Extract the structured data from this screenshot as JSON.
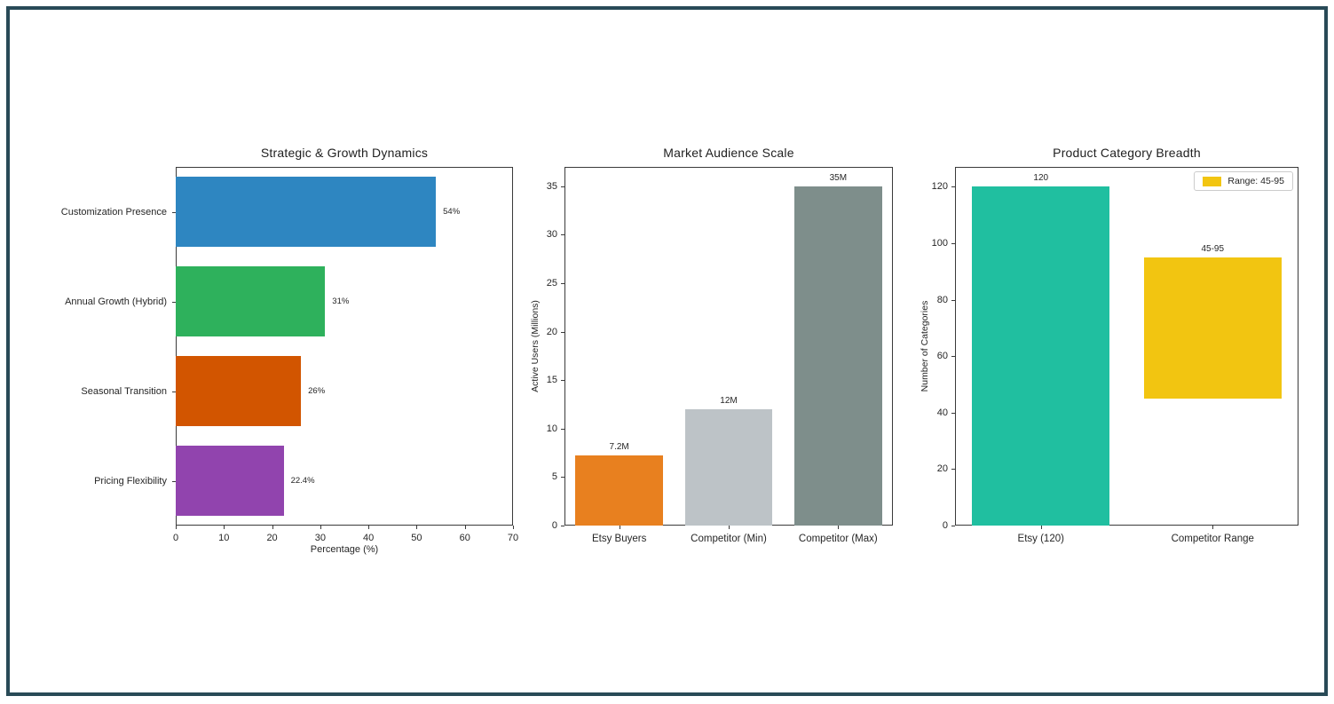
{
  "page": {
    "frame_border_color": "#294a57",
    "background_color": "#ffffff",
    "spine_color": "#3a3a3a"
  },
  "chart_data": [
    {
      "type": "bar",
      "orientation": "horizontal",
      "title": "Strategic & Growth Dynamics",
      "categories": [
        "Customization Presence",
        "Annual Growth (Hybrid)",
        "Seasonal Transition",
        "Pricing Flexibility"
      ],
      "values": [
        54,
        31,
        26,
        22.4
      ],
      "bar_labels": [
        "54%",
        "31%",
        "26%",
        "22.4%"
      ],
      "colors": [
        "#2e86c1",
        "#2eb15c",
        "#d25500",
        "#9144ae"
      ],
      "xlabel": "Percentage (%)",
      "xlim": [
        0,
        70
      ],
      "xticks": [
        0,
        10,
        20,
        30,
        40,
        50,
        60,
        70
      ],
      "grid": false,
      "legend": null
    },
    {
      "type": "bar",
      "orientation": "vertical",
      "title": "Market Audience Scale",
      "categories": [
        "Etsy Buyers",
        "Competitor (Min)",
        "Competitor (Max)"
      ],
      "values": [
        7.2,
        12,
        35
      ],
      "bar_labels": [
        "7.2M",
        "12M",
        "35M"
      ],
      "colors": [
        "#e8801f",
        "#bdc3c7",
        "#7e8e8b"
      ],
      "ylabel": "Active Users (Millions)",
      "ylim": [
        0,
        37
      ],
      "yticks": [
        0,
        5,
        10,
        15,
        20,
        25,
        30,
        35
      ],
      "grid": false,
      "legend": null
    },
    {
      "type": "bar",
      "orientation": "vertical",
      "title": "Product Category Breadth",
      "categories": [
        "Etsy (120)",
        "Competitor Range"
      ],
      "bars": [
        {
          "start": 0,
          "end": 120,
          "label": "120",
          "color": "#20bfa0"
        },
        {
          "start": 45,
          "end": 95,
          "label": "45-95",
          "color": "#f2c511"
        }
      ],
      "ylabel": "Number of Categories",
      "ylim": [
        0,
        127
      ],
      "yticks": [
        0,
        20,
        40,
        60,
        80,
        100,
        120
      ],
      "grid": false,
      "legend": {
        "label": "Range: 45-95",
        "color": "#f2c511"
      }
    }
  ]
}
